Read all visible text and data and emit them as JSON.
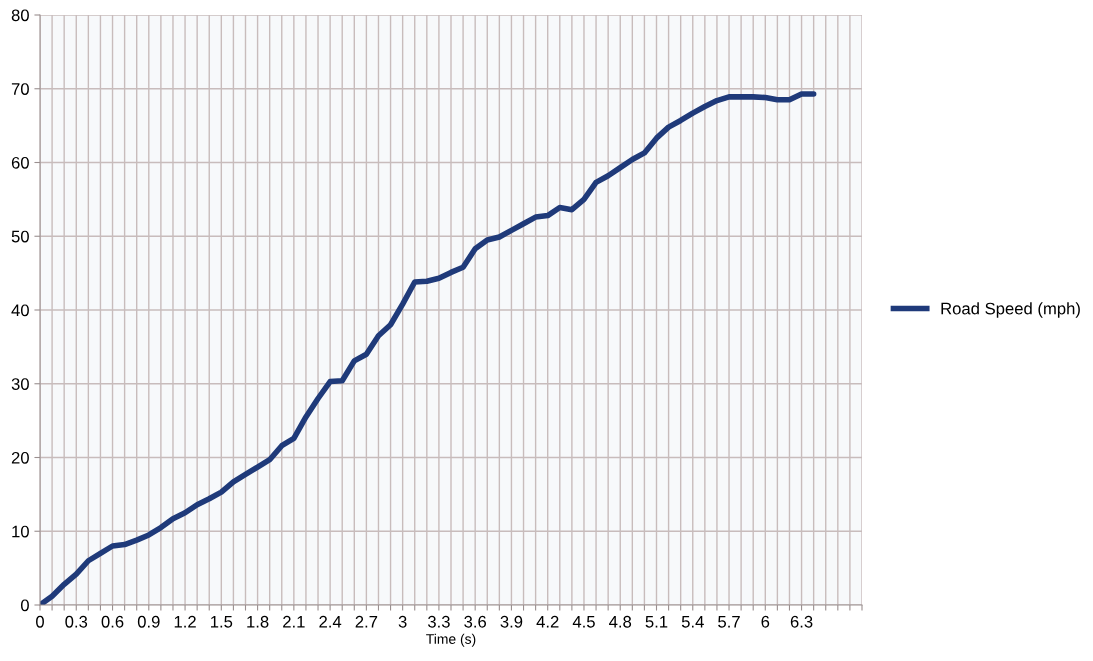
{
  "chart_data": {
    "type": "line",
    "xlabel": "Time (s)",
    "x": [
      0,
      0.1,
      0.2,
      0.3,
      0.4,
      0.5,
      0.6,
      0.7,
      0.8,
      0.9,
      1.0,
      1.1,
      1.2,
      1.3,
      1.4,
      1.5,
      1.6,
      1.7,
      1.8,
      1.9,
      2.0,
      2.1,
      2.2,
      2.3,
      2.4,
      2.5,
      2.6,
      2.7,
      2.8,
      2.9,
      3.0,
      3.1,
      3.2,
      3.3,
      3.4,
      3.5,
      3.6,
      3.7,
      3.8,
      3.9,
      4.0,
      4.1,
      4.2,
      4.3,
      4.4,
      4.5,
      4.6,
      4.7,
      4.8,
      4.9,
      5.0,
      5.1,
      5.2,
      5.3,
      5.4,
      5.5,
      5.6,
      5.7,
      5.8,
      5.9,
      6.0,
      6.1,
      6.2,
      6.3,
      6.4
    ],
    "series": [
      {
        "name": "Road Speed (mph)",
        "color": "#1f3a7a",
        "values": [
          0,
          1.2,
          2.8,
          4.2,
          6,
          7,
          8,
          8.2,
          8.8,
          9.5,
          10.5,
          11.7,
          12.5,
          13.6,
          14.4,
          15.3,
          16.7,
          17.7,
          18.7,
          19.7,
          21.6,
          22.6,
          25.5,
          28,
          30.3,
          30.4,
          33.1,
          34,
          36.5,
          38,
          40.8,
          43.8,
          43.9,
          44.3,
          45.1,
          45.8,
          48.3,
          49.5,
          49.9,
          50.8,
          51.7,
          52.6,
          52.8,
          53.9,
          53.6,
          55,
          57.3,
          58.2,
          59.3,
          60.4,
          61.3,
          63.3,
          64.8,
          65.7,
          66.7,
          67.6,
          68.4,
          68.9,
          68.9,
          68.9,
          68.8,
          68.5,
          68.5,
          69.3,
          69.3
        ]
      }
    ],
    "xlim": [
      0,
      6.8
    ],
    "xticks": [
      0,
      {
        "value": 0.1,
        "label": null
      },
      {
        "value": 0.2,
        "label": null
      },
      0.3,
      {
        "value": 0.4,
        "label": null
      },
      {
        "value": 0.5,
        "label": null
      },
      0.6,
      {
        "value": 0.7,
        "label": null
      },
      {
        "value": 0.8,
        "label": null
      },
      0.9,
      {
        "value": 1.0,
        "label": null
      },
      {
        "value": 1.1,
        "label": null
      },
      1.2,
      {
        "value": 1.3,
        "label": null
      },
      {
        "value": 1.4,
        "label": null
      },
      1.5,
      {
        "value": 1.6,
        "label": null
      },
      {
        "value": 1.7,
        "label": null
      },
      1.8,
      {
        "value": 1.9,
        "label": null
      },
      {
        "value": 2.0,
        "label": null
      },
      2.1,
      {
        "value": 2.2,
        "label": null
      },
      {
        "value": 2.3,
        "label": null
      },
      2.4,
      {
        "value": 2.5,
        "label": null
      },
      {
        "value": 2.6,
        "label": null
      },
      2.7,
      {
        "value": 2.8,
        "label": null
      },
      {
        "value": 2.9,
        "label": null
      },
      3,
      {
        "value": 3.1,
        "label": null
      },
      {
        "value": 3.2,
        "label": null
      },
      3.3,
      {
        "value": 3.4,
        "label": null
      },
      {
        "value": 3.5,
        "label": null
      },
      3.6,
      {
        "value": 3.7,
        "label": null
      },
      {
        "value": 3.8,
        "label": null
      },
      3.9,
      {
        "value": 4.0,
        "label": null
      },
      {
        "value": 4.1,
        "label": null
      },
      4.2,
      {
        "value": 4.3,
        "label": null
      },
      {
        "value": 4.4,
        "label": null
      },
      4.5,
      {
        "value": 4.6,
        "label": null
      },
      {
        "value": 4.7,
        "label": null
      },
      4.8,
      {
        "value": 4.9,
        "label": null
      },
      {
        "value": 5.0,
        "label": null
      },
      5.1,
      {
        "value": 5.2,
        "label": null
      },
      {
        "value": 5.3,
        "label": null
      },
      5.4,
      {
        "value": 5.5,
        "label": null
      },
      {
        "value": 5.6,
        "label": null
      },
      5.7,
      {
        "value": 5.8,
        "label": null
      },
      {
        "value": 5.9,
        "label": null
      },
      6,
      {
        "value": 6.1,
        "label": null
      },
      {
        "value": 6.2,
        "label": null
      },
      6.3,
      {
        "value": 6.4,
        "label": null
      },
      {
        "value": 6.5,
        "label": null
      },
      {
        "value": 6.6,
        "label": null
      },
      {
        "value": 6.7,
        "label": null
      },
      {
        "value": 6.8,
        "label": null
      }
    ],
    "ylim": [
      0,
      80
    ],
    "yticks": [
      0,
      10,
      20,
      30,
      40,
      50,
      60,
      70,
      80
    ],
    "grid": true,
    "legend": "right",
    "marker": "none",
    "line_style": "solid"
  }
}
